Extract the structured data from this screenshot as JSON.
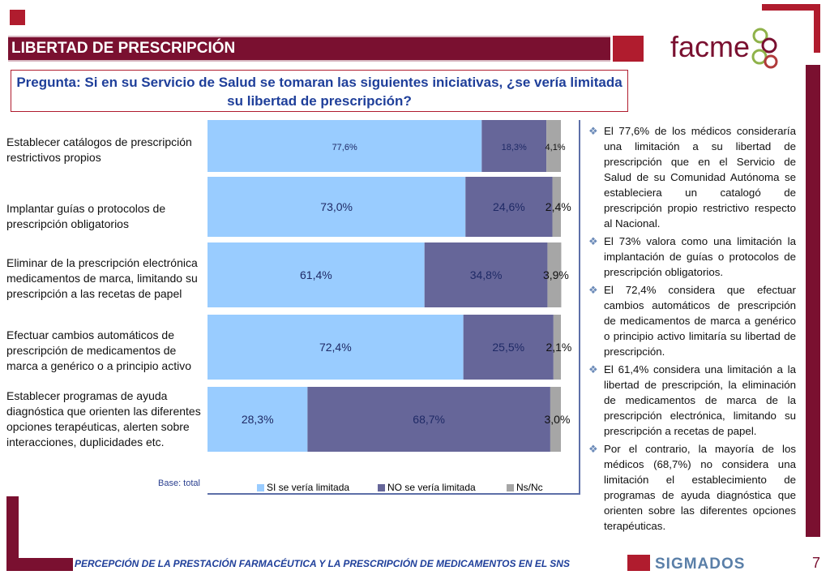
{
  "header": {
    "title": "LIBERTAD DE PRESCRIPCIÓN",
    "question": "Pregunta: Si en su Servicio de Salud se tomaran las siguientes iniciativas, ¿se vería limitada su libertad de prescripción?"
  },
  "logos": {
    "facme": "facme",
    "sigmados": "SIGMADOS"
  },
  "colors": {
    "brand": "#7a1030",
    "si": "#99ccff",
    "no": "#666699",
    "nsnc": "#a6a6a6",
    "question_text": "#1f3f9a"
  },
  "chart_data": {
    "type": "bar",
    "orientation": "horizontal",
    "stacked": true,
    "percent_stacked": true,
    "categories": [
      "Establecer catálogos de prescripción restrictivos propios",
      "Implantar guías o protocolos de prescripción obligatorios",
      "Eliminar de la prescripción electrónica medicamentos de marca, limitando su prescripción a las recetas de papel",
      "Efectuar cambios automáticos de prescripción de medicamentos de marca a genérico o a principio activo",
      "Establecer programas de ayuda diagnóstica que orienten las diferentes opciones terapéuticas, alerten sobre interacciones, duplicidades etc."
    ],
    "series": [
      {
        "name": "SI se vería limitada",
        "color": "#99ccff",
        "values": [
          77.6,
          73.0,
          61.4,
          72.4,
          28.3
        ],
        "labels": [
          "77,6%",
          "73,0%",
          "61,4%",
          "72,4%",
          "28,3%"
        ]
      },
      {
        "name": "NO se vería limitada",
        "color": "#666699",
        "values": [
          18.3,
          24.6,
          34.8,
          25.5,
          68.7
        ],
        "labels": [
          "18,3%",
          "24,6%",
          "34,8%",
          "25,5%",
          "68,7%"
        ]
      },
      {
        "name": "Ns/Nc",
        "color": "#a6a6a6",
        "values": [
          4.1,
          2.4,
          3.9,
          2.1,
          3.0
        ],
        "labels": [
          "4,1%",
          "2,4%",
          "3,9%",
          "2,1%",
          "3,0%"
        ]
      }
    ],
    "xlim": [
      0,
      100
    ],
    "grid": false,
    "legend": "bottom",
    "note": "Base: total"
  },
  "commentary": [
    "El 77,6% de los médicos consideraría una limitación a su libertad de prescripción que en el Servicio de Salud de su Comunidad Autónoma se estableciera un catalogó de prescripción propio restrictivo respecto al Nacional.",
    "El 73% valora como una limitación la implantación de guías o protocolos de prescripción obligatorios.",
    "El 72,4% considera que efectuar cambios automáticos de prescripción de medicamentos de marca a genérico o principio activo limitaría su libertad de prescripción.",
    "El 61,4% considera una limitación a la libertad de prescripción, la eliminación de medicamentos de marca de la prescripción electrónica, limitando su  prescripción a recetas de papel.",
    "Por el contrario, la mayoría de los médicos (68,7%) no considera una limitación el establecimiento de programas de ayuda diagnóstica que orienten sobre las diferentes opciones terapéuticas."
  ],
  "footer": {
    "text": "PERCEPCIÓN DE LA PRESTACIÓN FARMACÉUTICA Y LA PRESCRIPCIÓN DE MEDICAMENTOS EN EL SNS",
    "page_number": "7"
  }
}
